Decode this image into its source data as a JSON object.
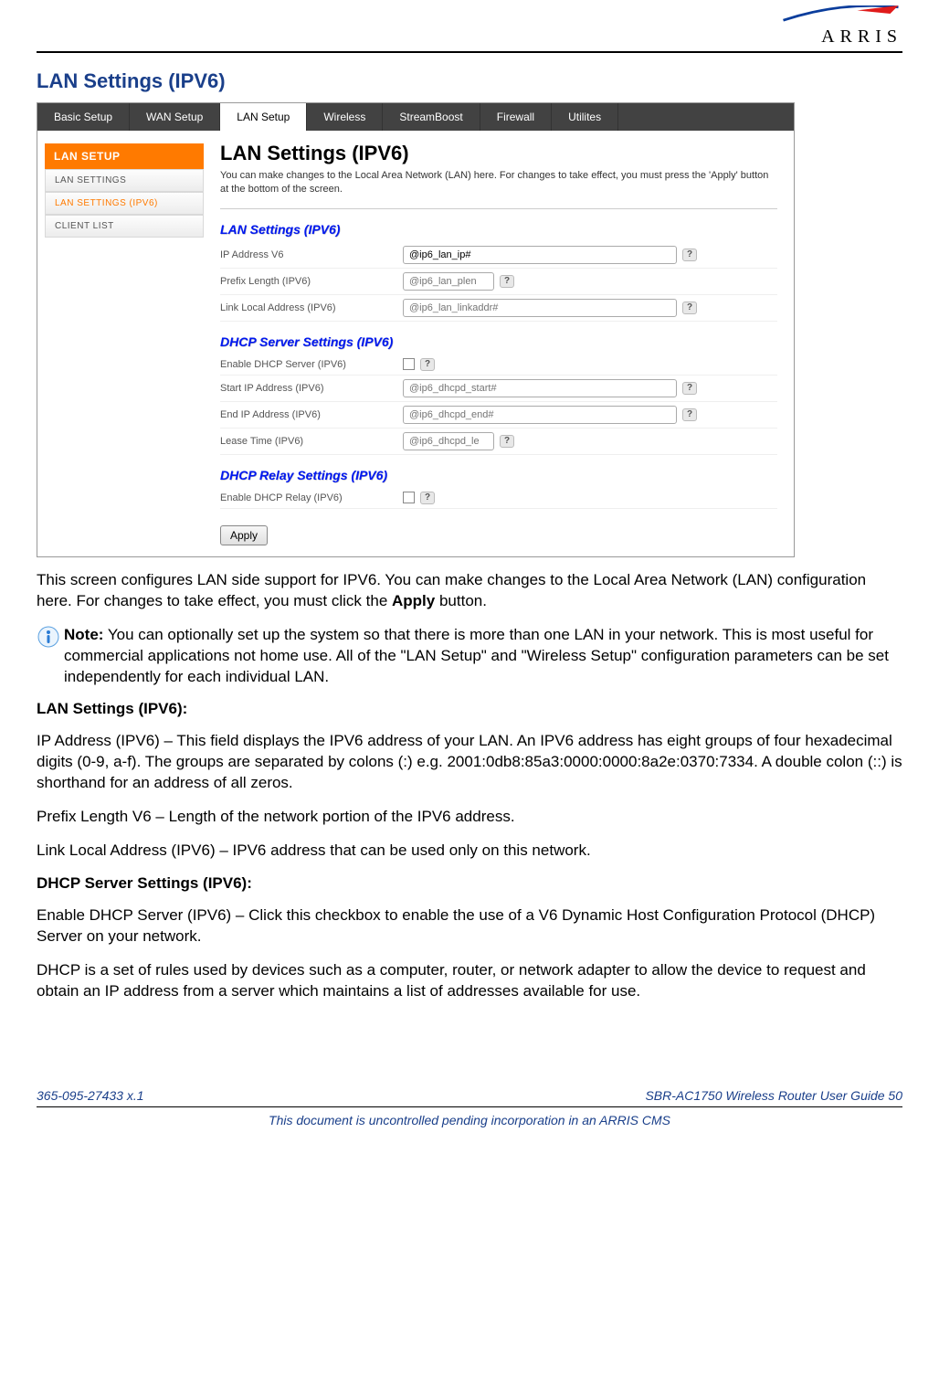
{
  "logo_text": "ARRIS",
  "doc_title": "LAN Settings (IPV6)",
  "topnav": [
    "Basic Setup",
    "WAN Setup",
    "LAN Setup",
    "Wireless",
    "StreamBoost",
    "Firewall",
    "Utilites"
  ],
  "topnav_active_index": 2,
  "sidebar": {
    "header": "LAN SETUP",
    "items": [
      "LAN SETTINGS",
      "LAN SETTINGS (IPV6)",
      "CLIENT LIST"
    ],
    "active_index": 1
  },
  "content": {
    "title": "LAN Settings (IPV6)",
    "subtitle": "You can make changes to the Local Area Network (LAN) here. For changes to take effect, you must press the 'Apply' button at the bottom of the screen.",
    "section1": "LAN Settings (IPV6)",
    "s1_rows": [
      {
        "label": "IP Address V6",
        "placeholder": "@ip6_lan_ip#",
        "filled": true,
        "size": "lg"
      },
      {
        "label": "Prefix Length (IPV6)",
        "placeholder": "@ip6_lan_plen",
        "filled": false,
        "size": "sm"
      },
      {
        "label": "Link Local Address (IPV6)",
        "placeholder": "@ip6_lan_linkaddr#",
        "filled": false,
        "size": "lg"
      }
    ],
    "section2": "DHCP Server Settings (IPV6)",
    "s2_rows": [
      {
        "label": "Enable DHCP Server (IPV6)",
        "type": "checkbox"
      },
      {
        "label": "Start IP Address (IPV6)",
        "placeholder": "@ip6_dhcpd_start#",
        "filled": false,
        "size": "lg"
      },
      {
        "label": "End IP Address (IPV6)",
        "placeholder": "@ip6_dhcpd_end#",
        "filled": false,
        "size": "lg"
      },
      {
        "label": "Lease Time (IPV6)",
        "placeholder": "@ip6_dhcpd_le",
        "filled": false,
        "size": "sm"
      }
    ],
    "section3": "DHCP Relay Settings (IPV6)",
    "s3_rows": [
      {
        "label": "Enable DHCP Relay (IPV6)",
        "type": "checkbox"
      }
    ],
    "apply_label": "Apply"
  },
  "paragraphs": {
    "p1a": "This screen configures LAN side support for IPV6.  You can make changes to the Local Area Network (LAN) configuration here.  For changes to take effect, you must click the ",
    "p1b": "Apply",
    "p1c": " button.",
    "note_label": "Note:",
    "note_text": "  You can optionally set up the system so that there is more than one LAN in your network.  This is most useful for commercial applications not home use.  All of the \"LAN Setup\" and \"Wireless Setup\" configuration parameters can be set independently for each individual LAN.",
    "h1": "LAN Settings (IPV6):",
    "p2": "IP Address (IPV6) – This field displays the IPV6 address of your LAN.  An IPV6 address has eight groups of four hexadecimal digits (0-9, a-f).  The groups are separated by colons (:) e.g. 2001:0db8:85a3:0000:0000:8a2e:0370:7334.  A double colon (::) is shorthand for an address of all zeros.",
    "p3": "Prefix Length V6 – Length of the network portion of the IPV6 address.",
    "p4": "Link Local Address (IPV6) – IPV6 address that can be used only on this network.",
    "h2": "DHCP Server Settings (IPV6):",
    "p5": "Enable DHCP Server (IPV6) – Click this checkbox to enable the use of a V6 Dynamic Host Configuration Protocol (DHCP) Server on your network.",
    "p6": "DHCP is a set of rules used by devices such as a computer, router, or network adapter to allow the device to request and obtain an IP address from a server which maintains a list of addresses available for use."
  },
  "footer": {
    "left": "365-095-27433 x.1",
    "right": "SBR-AC1750 Wireless Router User Guide    50",
    "center": "This document is uncontrolled pending incorporation in an ARRIS CMS"
  }
}
